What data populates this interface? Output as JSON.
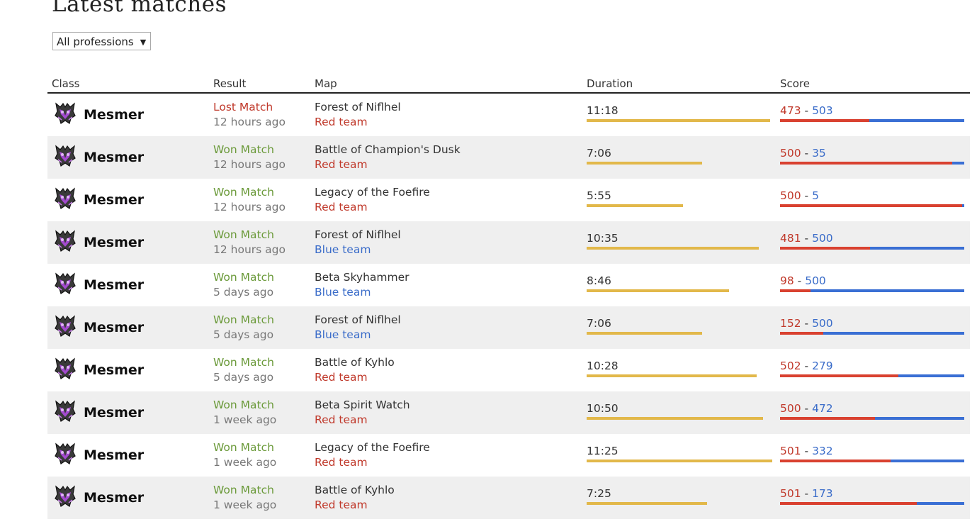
{
  "page": {
    "title": "Latest matches",
    "filter": {
      "selected": "All professions",
      "arrow": "▼"
    }
  },
  "columns": {
    "class": "Class",
    "result": "Result",
    "map": "Map",
    "duration": "Duration",
    "score": "Score"
  },
  "colors": {
    "won": "#6b9a3a",
    "lost": "#c0392b",
    "red_team": "#c0392b",
    "blue_team": "#3a6cc9",
    "duration_bar": "#e2b84a"
  },
  "score_separator": "-",
  "matches": [
    {
      "class": "Mesmer",
      "icon": "mesmer-icon",
      "result": "Lost Match",
      "outcome": "lost",
      "time_ago": "12 hours ago",
      "map": "Forest of Niflhel",
      "team": "Red team",
      "team_color": "red",
      "duration": "11:18",
      "duration_seconds": 678,
      "score_red": 473,
      "score_blue": 503
    },
    {
      "class": "Mesmer",
      "icon": "mesmer-icon",
      "result": "Won Match",
      "outcome": "won",
      "time_ago": "12 hours ago",
      "map": "Battle of Champion's Dusk",
      "team": "Red team",
      "team_color": "red",
      "duration": "7:06",
      "duration_seconds": 426,
      "score_red": 500,
      "score_blue": 35
    },
    {
      "class": "Mesmer",
      "icon": "mesmer-icon",
      "result": "Won Match",
      "outcome": "won",
      "time_ago": "12 hours ago",
      "map": "Legacy of the Foefire",
      "team": "Red team",
      "team_color": "red",
      "duration": "5:55",
      "duration_seconds": 355,
      "score_red": 500,
      "score_blue": 5
    },
    {
      "class": "Mesmer",
      "icon": "mesmer-icon",
      "result": "Won Match",
      "outcome": "won",
      "time_ago": "12 hours ago",
      "map": "Forest of Niflhel",
      "team": "Blue team",
      "team_color": "blue",
      "duration": "10:35",
      "duration_seconds": 635,
      "score_red": 481,
      "score_blue": 500
    },
    {
      "class": "Mesmer",
      "icon": "mesmer-icon",
      "result": "Won Match",
      "outcome": "won",
      "time_ago": "5 days ago",
      "map": "Beta Skyhammer",
      "team": "Blue team",
      "team_color": "blue",
      "duration": "8:46",
      "duration_seconds": 526,
      "score_red": 98,
      "score_blue": 500
    },
    {
      "class": "Mesmer",
      "icon": "mesmer-icon",
      "result": "Won Match",
      "outcome": "won",
      "time_ago": "5 days ago",
      "map": "Forest of Niflhel",
      "team": "Blue team",
      "team_color": "blue",
      "duration": "7:06",
      "duration_seconds": 426,
      "score_red": 152,
      "score_blue": 500
    },
    {
      "class": "Mesmer",
      "icon": "mesmer-icon",
      "result": "Won Match",
      "outcome": "won",
      "time_ago": "5 days ago",
      "map": "Battle of Kyhlo",
      "team": "Red team",
      "team_color": "red",
      "duration": "10:28",
      "duration_seconds": 628,
      "score_red": 502,
      "score_blue": 279
    },
    {
      "class": "Mesmer",
      "icon": "mesmer-icon",
      "result": "Won Match",
      "outcome": "won",
      "time_ago": "1 week ago",
      "map": "Beta Spirit Watch",
      "team": "Red team",
      "team_color": "red",
      "duration": "10:50",
      "duration_seconds": 650,
      "score_red": 500,
      "score_blue": 472
    },
    {
      "class": "Mesmer",
      "icon": "mesmer-icon",
      "result": "Won Match",
      "outcome": "won",
      "time_ago": "1 week ago",
      "map": "Legacy of the Foefire",
      "team": "Red team",
      "team_color": "red",
      "duration": "11:25",
      "duration_seconds": 685,
      "score_red": 501,
      "score_blue": 332
    },
    {
      "class": "Mesmer",
      "icon": "mesmer-icon",
      "result": "Won Match",
      "outcome": "won",
      "time_ago": "1 week ago",
      "map": "Battle of Kyhlo",
      "team": "Red team",
      "team_color": "red",
      "duration": "7:25",
      "duration_seconds": 445,
      "score_red": 501,
      "score_blue": 173
    }
  ]
}
